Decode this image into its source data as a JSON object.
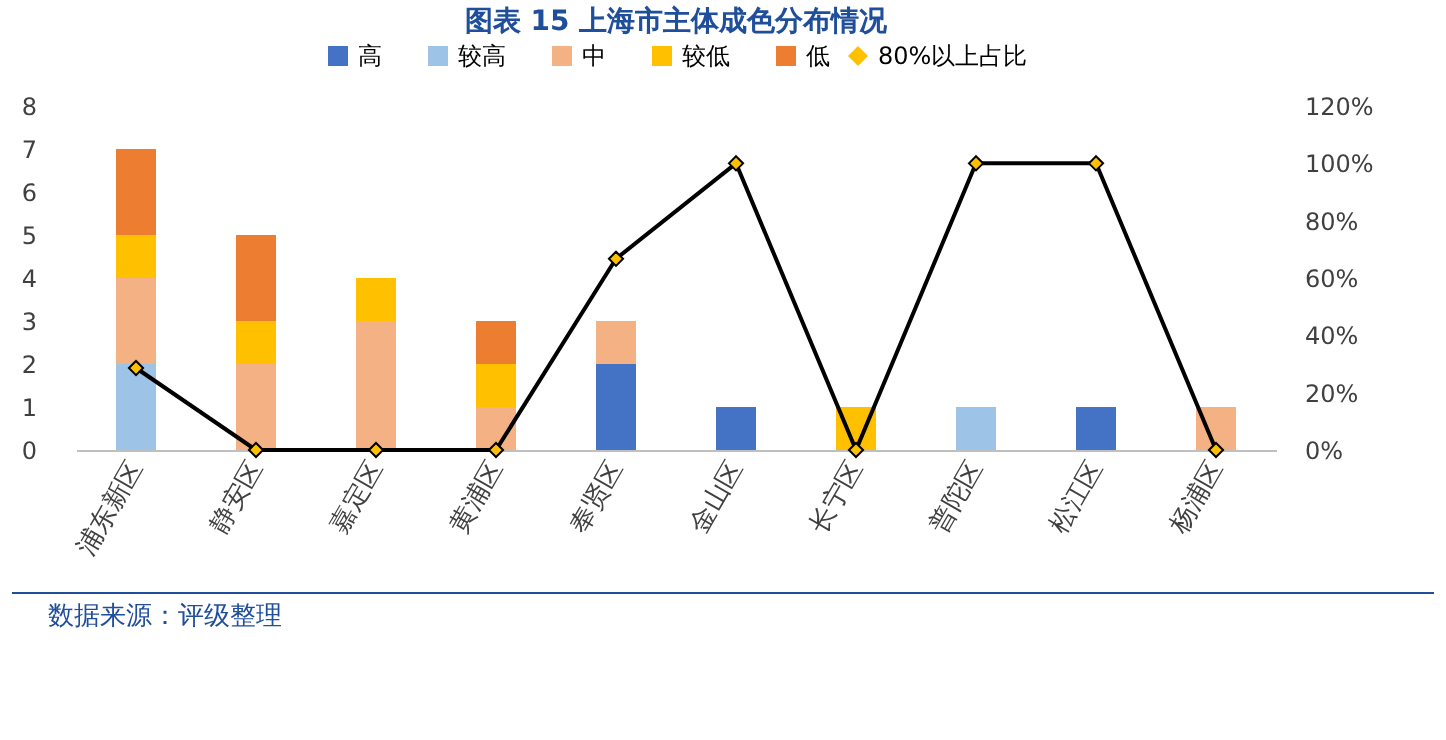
{
  "chart_data": {
    "type": "bar",
    "title": "图表 15 上海市主体成色分布情况",
    "stacked": true,
    "categories": [
      "浦东新区",
      "静安区",
      "嘉定区",
      "黄浦区",
      "奉贤区",
      "金山区",
      "长宁区",
      "普陀区",
      "松江区",
      "杨浦区"
    ],
    "series": [
      {
        "name": "高",
        "color": "#4472c4",
        "values": [
          0,
          0,
          0,
          0,
          2,
          1,
          0,
          0,
          1,
          0
        ]
      },
      {
        "name": "较高",
        "color": "#9dc3e6",
        "values": [
          2,
          0,
          0,
          0,
          0,
          0,
          0,
          1,
          0,
          0
        ]
      },
      {
        "name": "中",
        "color": "#f4b183",
        "values": [
          2,
          2,
          3,
          1,
          1,
          0,
          0,
          0,
          0,
          1
        ]
      },
      {
        "name": "较低",
        "color": "#ffc000",
        "values": [
          1,
          1,
          1,
          1,
          0,
          0,
          1,
          0,
          0,
          0
        ]
      },
      {
        "name": "低",
        "color": "#ed7d31",
        "values": [
          2,
          2,
          0,
          1,
          0,
          0,
          0,
          0,
          0,
          0
        ]
      },
      {
        "name": "80%以上占比",
        "type": "line",
        "axis": "y2",
        "color": "#000000",
        "marker": "diamond",
        "values": [
          28.6,
          0,
          0,
          0,
          66.7,
          100,
          0,
          100,
          100,
          0
        ]
      }
    ],
    "ylim": [
      0,
      8
    ],
    "yticks": [
      0,
      1,
      2,
      3,
      4,
      5,
      6,
      7,
      8
    ],
    "y2lim": [
      0,
      120
    ],
    "y2ticks": [
      {
        "value": 0,
        "label": "0%"
      },
      {
        "value": 20,
        "label": "20%"
      },
      {
        "value": 40,
        "label": "40%"
      },
      {
        "value": 60,
        "label": "60%"
      },
      {
        "value": 80,
        "label": "80%"
      },
      {
        "value": 100,
        "label": "100%"
      },
      {
        "value": 120,
        "label": "120%"
      }
    ],
    "grid": false,
    "legend": "top",
    "annotations": [
      "数据来源：评级整理"
    ]
  }
}
